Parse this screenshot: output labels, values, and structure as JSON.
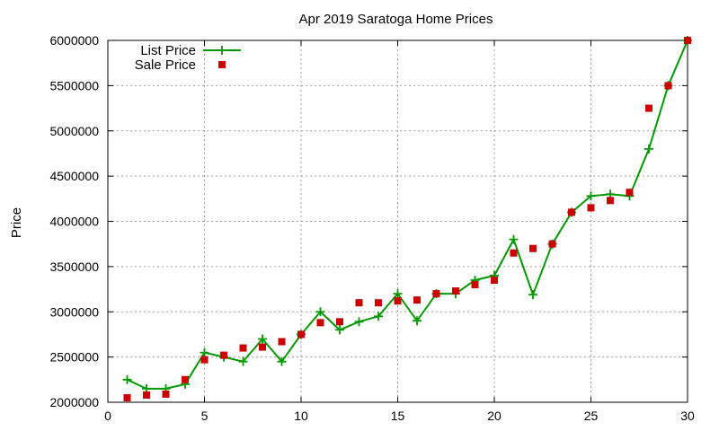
{
  "chart_data": {
    "type": "line",
    "title": "Apr 2019 Saratoga Home Prices",
    "xlabel": "",
    "ylabel": "Price",
    "xlim": [
      0,
      30
    ],
    "ylim": [
      2000000,
      6000000
    ],
    "xticks": [
      0,
      5,
      10,
      15,
      20,
      25,
      30
    ],
    "yticks": [
      2000000,
      2500000,
      3000000,
      3500000,
      4000000,
      4500000,
      5000000,
      5500000,
      6000000
    ],
    "xtick_labels": [
      "0",
      "5",
      "10",
      "15",
      "20",
      "25",
      "30"
    ],
    "ytick_labels": [
      "2000000",
      "2500000",
      "3000000",
      "3500000",
      "4000000",
      "4500000",
      "5000000",
      "5500000",
      "6000000"
    ],
    "grid": true,
    "legend_position": "top-left",
    "series": [
      {
        "name": "List Price",
        "style": "line-plus",
        "color": "#009900",
        "x": [
          1,
          2,
          3,
          4,
          5,
          6,
          7,
          8,
          9,
          10,
          11,
          12,
          13,
          14,
          15,
          16,
          17,
          18,
          19,
          20,
          21,
          22,
          23,
          24,
          25,
          26,
          27,
          28,
          29,
          30
        ],
        "values": [
          2250000,
          2150000,
          2150000,
          2200000,
          2550000,
          2500000,
          2450000,
          2700000,
          2450000,
          2750000,
          3000000,
          2800000,
          2890000,
          2950000,
          3200000,
          2900000,
          3200000,
          3200000,
          3350000,
          3400000,
          3800000,
          3190000,
          3750000,
          4100000,
          4280000,
          4300000,
          4280000,
          4800000,
          5500000,
          6000000
        ]
      },
      {
        "name": "Sale Price",
        "style": "square",
        "color": "#cc0000",
        "x": [
          1,
          2,
          3,
          4,
          5,
          6,
          7,
          8,
          9,
          10,
          11,
          12,
          13,
          14,
          15,
          16,
          17,
          18,
          19,
          20,
          21,
          22,
          23,
          24,
          25,
          26,
          27,
          28,
          29,
          30
        ],
        "values": [
          2050000,
          2080000,
          2090000,
          2250000,
          2470000,
          2520000,
          2600000,
          2610000,
          2670000,
          2750000,
          2880000,
          2890000,
          3100000,
          3100000,
          3120000,
          3130000,
          3200000,
          3230000,
          3300000,
          3350000,
          3650000,
          3700000,
          3750000,
          4100000,
          4150000,
          4230000,
          4320000,
          5250000,
          5500000,
          6000000
        ]
      }
    ]
  }
}
